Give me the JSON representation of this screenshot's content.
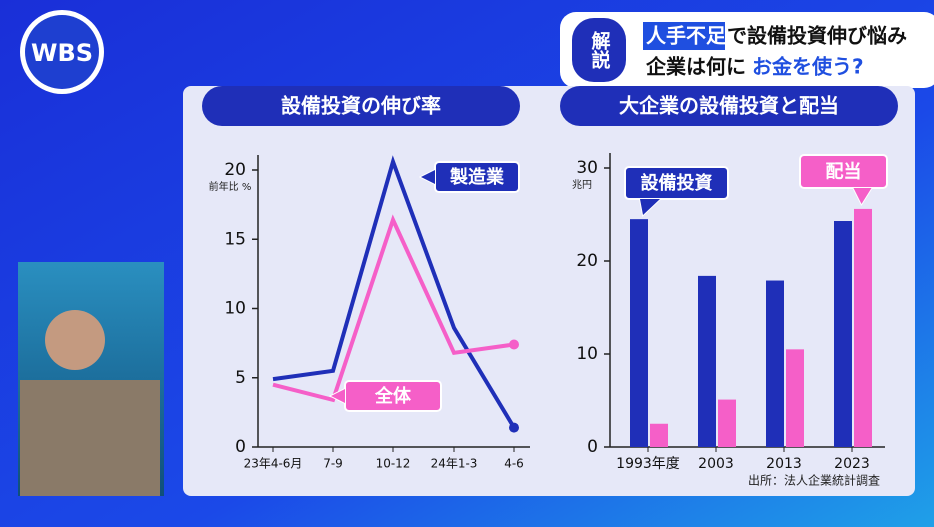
{
  "logo": "WBS",
  "badge": "解説",
  "headline": {
    "line1_highlight": "人手不足",
    "line1_rest": "で設備投資伸び悩み",
    "line2_start": "企業は何に",
    "line2_highlight": "お金を使う?"
  },
  "chart_data": [
    {
      "type": "line",
      "title": "設備投資の伸び率",
      "y_label": "前年比 %",
      "categories": [
        "23年4-6月",
        "7-9",
        "10-12",
        "24年1-3",
        "4-6"
      ],
      "series": [
        {
          "name": "製造業",
          "color": "#1f2fb8",
          "values": [
            4.9,
            5.5,
            20.6,
            8.6,
            1.4
          ]
        },
        {
          "name": "全体",
          "color": "#f55fc8",
          "values": [
            4.5,
            3.4,
            16.4,
            6.8,
            7.4
          ]
        }
      ],
      "ylim": [
        0,
        20
      ],
      "yticks": [
        0,
        5,
        10,
        15,
        20
      ]
    },
    {
      "type": "bar",
      "title": "大企業の設備投資と配当",
      "y_label": "兆円",
      "categories": [
        "1993年度",
        "2003",
        "2013",
        "2023"
      ],
      "series": [
        {
          "name": "設備投資",
          "color": "#1f2fb8",
          "values": [
            24.5,
            18.4,
            17.9,
            24.3
          ]
        },
        {
          "name": "配当",
          "color": "#f55fc8",
          "values": [
            2.5,
            5.1,
            10.5,
            25.6
          ]
        }
      ],
      "ylim": [
        0,
        30
      ],
      "yticks": [
        0,
        10,
        20,
        30
      ],
      "source": "出所：法人企業統計調査"
    }
  ]
}
